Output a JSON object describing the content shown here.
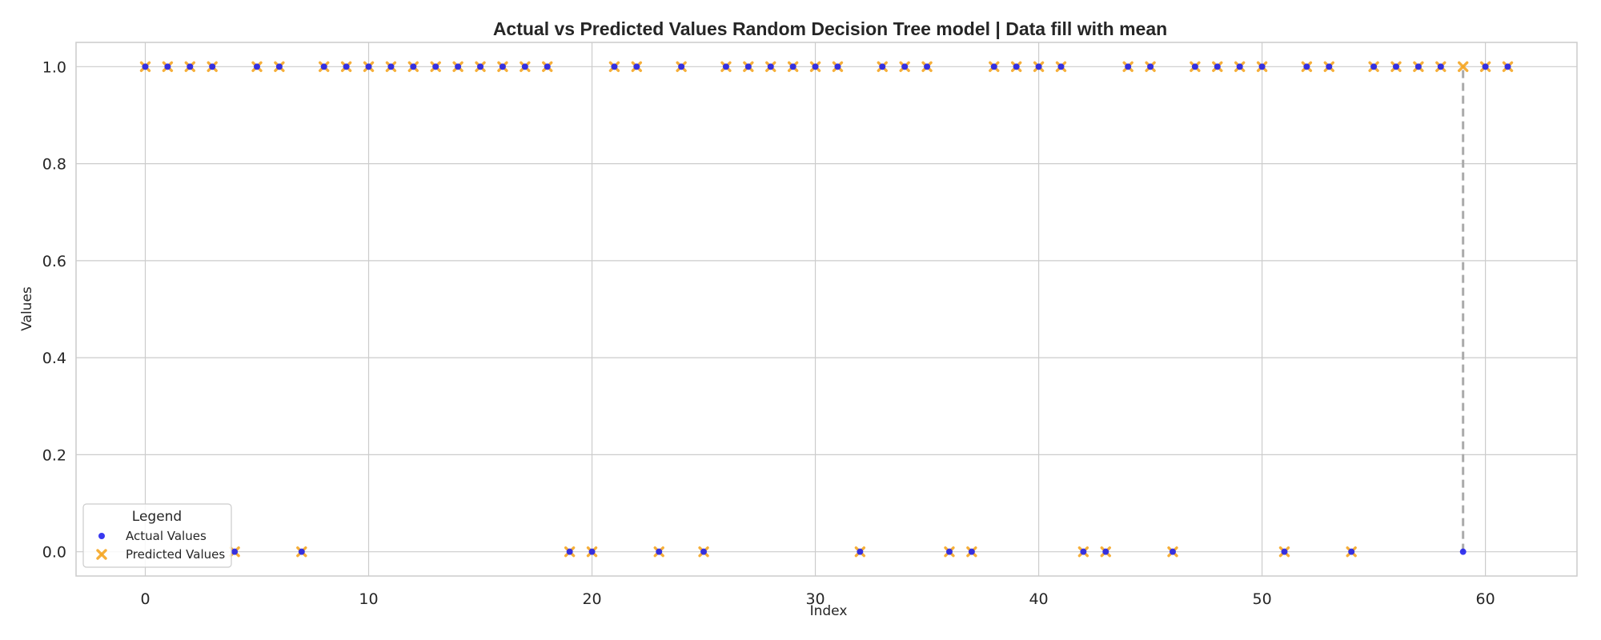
{
  "chart_data": {
    "type": "scatter",
    "title": "Actual vs Predicted Values Random Decision Tree model | Data fill with mean",
    "xlabel": "Index",
    "ylabel": "Values",
    "xlim": [
      -3.1,
      64.1
    ],
    "ylim": [
      -0.05,
      1.05
    ],
    "x_ticks": [
      0,
      10,
      20,
      30,
      40,
      50,
      60
    ],
    "y_ticks": [
      0.0,
      0.2,
      0.4,
      0.6,
      0.8,
      1.0
    ],
    "x_tick_labels": [
      "0",
      "10",
      "20",
      "30",
      "40",
      "50",
      "60"
    ],
    "y_tick_labels": [
      "0.0",
      "0.2",
      "0.4",
      "0.6",
      "0.8",
      "1.0"
    ],
    "grid": true,
    "legend": {
      "title": "Legend",
      "placement": "lower-left",
      "entries": [
        "Actual Values",
        "Predicted Values"
      ]
    },
    "series": [
      {
        "name": "Actual Values",
        "marker": "circle",
        "color": "#2222ee",
        "x": [
          0,
          1,
          2,
          3,
          4,
          5,
          6,
          7,
          8,
          9,
          10,
          11,
          12,
          13,
          14,
          15,
          16,
          17,
          18,
          19,
          20,
          21,
          22,
          23,
          24,
          25,
          26,
          27,
          28,
          29,
          30,
          31,
          32,
          33,
          34,
          35,
          36,
          37,
          38,
          39,
          40,
          41,
          42,
          43,
          44,
          45,
          46,
          47,
          48,
          49,
          50,
          51,
          52,
          53,
          54,
          55,
          56,
          57,
          58,
          59,
          60,
          61
        ],
        "y": [
          1,
          1,
          1,
          1,
          0,
          1,
          1,
          0,
          1,
          1,
          1,
          1,
          1,
          1,
          1,
          1,
          1,
          1,
          1,
          0,
          0,
          1,
          1,
          0,
          1,
          0,
          1,
          1,
          1,
          1,
          1,
          1,
          0,
          1,
          1,
          1,
          0,
          0,
          1,
          1,
          1,
          1,
          0,
          0,
          1,
          1,
          0,
          1,
          1,
          1,
          1,
          0,
          1,
          1,
          0,
          1,
          1,
          1,
          1,
          0,
          1,
          1
        ]
      },
      {
        "name": "Predicted Values",
        "marker": "x",
        "color": "#f5a623",
        "x": [
          0,
          1,
          2,
          3,
          4,
          5,
          6,
          7,
          8,
          9,
          10,
          11,
          12,
          13,
          14,
          15,
          16,
          17,
          18,
          19,
          20,
          21,
          22,
          23,
          24,
          25,
          26,
          27,
          28,
          29,
          30,
          31,
          32,
          33,
          34,
          35,
          36,
          37,
          38,
          39,
          40,
          41,
          42,
          43,
          44,
          45,
          46,
          47,
          48,
          49,
          50,
          51,
          52,
          53,
          54,
          55,
          56,
          57,
          58,
          59,
          60,
          61
        ],
        "y": [
          1,
          1,
          1,
          1,
          0,
          1,
          1,
          0,
          1,
          1,
          1,
          1,
          1,
          1,
          1,
          1,
          1,
          1,
          1,
          0,
          0,
          1,
          1,
          0,
          1,
          0,
          1,
          1,
          1,
          1,
          1,
          1,
          0,
          1,
          1,
          1,
          0,
          0,
          1,
          1,
          1,
          1,
          0,
          0,
          1,
          1,
          0,
          1,
          1,
          1,
          1,
          0,
          1,
          1,
          0,
          1,
          1,
          1,
          1,
          1,
          1,
          1
        ]
      }
    ],
    "error_lines": [
      {
        "x": 59,
        "from": 0,
        "to": 1,
        "color": "#aaaaaa",
        "style": "dashed"
      }
    ]
  }
}
